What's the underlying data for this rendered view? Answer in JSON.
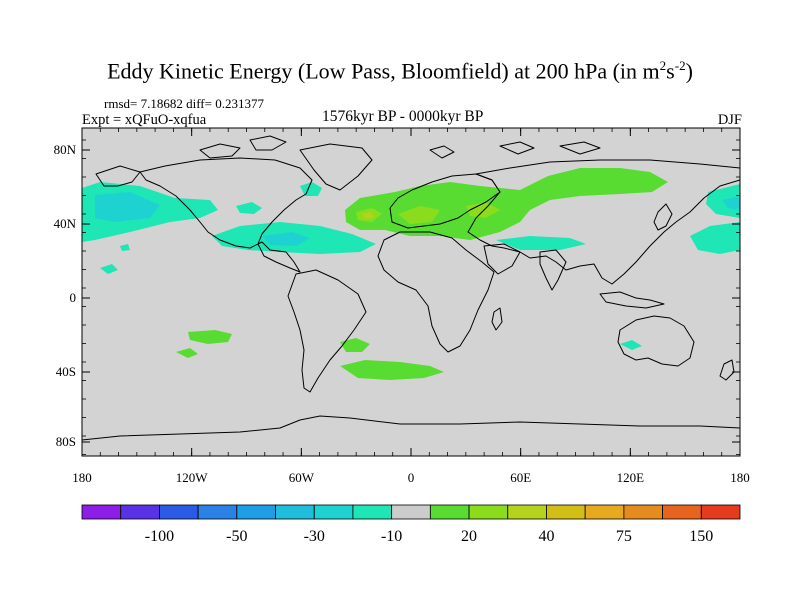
{
  "header": {
    "title_main": "Eddy Kinetic Energy (Low Pass, Bloomfield) at 200 hPa (in m",
    "title_sup1": "2",
    "title_mid": "s",
    "title_sup2": "-2",
    "title_end": ")",
    "stats": "rmsd= 7.18682 diff= 0.231377",
    "expt": "Expt = xQFuO-xqfua",
    "period": "1576kyr BP - 0000kyr BP",
    "season": "DJF"
  },
  "map": {
    "lat_ticks": [
      "80N",
      "40N",
      "0",
      "40S",
      "80S"
    ],
    "lon_ticks": [
      "180",
      "120W",
      "60W",
      "0",
      "60E",
      "120E",
      "180"
    ],
    "land_color": "#d3d3d3",
    "coast_color": "#000000"
  },
  "colorbar": {
    "colors": [
      "#8c1ee6",
      "#5a32e6",
      "#2a5ae6",
      "#2a82e6",
      "#1e9ee6",
      "#1ebedc",
      "#1ed2d2",
      "#1ee6b4",
      "#cccccc",
      "#58dc32",
      "#8cdc1e",
      "#b4d21e",
      "#d2be14",
      "#e6aa1e",
      "#e68c1e",
      "#e6641e",
      "#e63c1e"
    ],
    "labels": [
      "-100",
      "-50",
      "-30",
      "-10",
      "20",
      "40",
      "75",
      "150"
    ]
  }
}
